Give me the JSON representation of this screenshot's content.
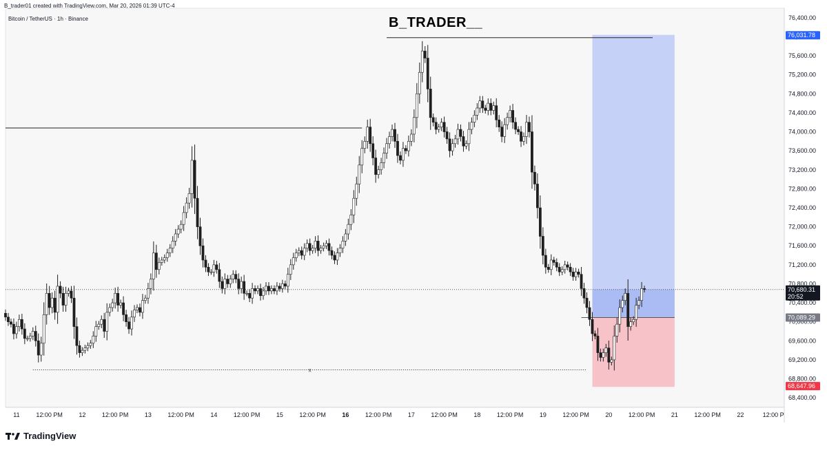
{
  "header": {
    "caption": "B_trader01 created with TradingView.com, Mar 20, 2026 01:39 UTC-4",
    "symbol": "Bitcoin / TetherUS · 1h · Binance",
    "watermark": "B_TRADER__"
  },
  "footer": {
    "brand": "TradingView"
  },
  "colors": {
    "up": "#ffffff",
    "down": "#1f1f1f",
    "wick": "#1f1f1f",
    "target_zone": "#c6d1f8",
    "stop_zone": "#f8c2c9",
    "target_label": "#2962ff",
    "stop_label": "#f23645",
    "entry_label": "#787b86",
    "price_label": "#131722"
  },
  "chart_data": {
    "type": "candlestick",
    "ylim": [
      68200,
      76600
    ],
    "y_ticks": [
      "76,400.00",
      "76,000.00",
      "75,600.00",
      "75,200.00",
      "74,800.00",
      "74,400.00",
      "74,000.00",
      "73,600.00",
      "73,200.00",
      "72,800.00",
      "72,400.00",
      "72,000.00",
      "71,600.00",
      "71,200.00",
      "70,800.00",
      "70,400.00",
      "70,000.00",
      "69,600.00",
      "69,200.00",
      "68,800.00",
      "68,400.00"
    ],
    "y_tick_values": [
      76400,
      76000,
      75600,
      75200,
      74800,
      74400,
      74000,
      73600,
      73200,
      72800,
      72400,
      72000,
      71600,
      71200,
      70800,
      70400,
      70000,
      69600,
      69200,
      68800,
      68400
    ],
    "x_range": [
      "Mar 10 20:00",
      "Mar 22 16:00"
    ],
    "x_ticks": [
      {
        "label": "11",
        "t": "11 00:00",
        "bold": false
      },
      {
        "label": "12:00 PM",
        "t": "11 12:00",
        "bold": false
      },
      {
        "label": "12",
        "t": "12 00:00",
        "bold": false
      },
      {
        "label": "12:00 PM",
        "t": "12 12:00",
        "bold": false
      },
      {
        "label": "13",
        "t": "13 00:00",
        "bold": false
      },
      {
        "label": "12:00 PM",
        "t": "13 12:00",
        "bold": false
      },
      {
        "label": "14",
        "t": "14 00:00",
        "bold": false
      },
      {
        "label": "12:00 PM",
        "t": "14 12:00",
        "bold": false
      },
      {
        "label": "15",
        "t": "15 00:00",
        "bold": false
      },
      {
        "label": "12:00 PM",
        "t": "15 12:00",
        "bold": false
      },
      {
        "label": "16",
        "t": "16 00:00",
        "bold": true
      },
      {
        "label": "12:00 PM",
        "t": "16 12:00",
        "bold": false
      },
      {
        "label": "17",
        "t": "17 00:00",
        "bold": false
      },
      {
        "label": "12:00 PM",
        "t": "17 12:00",
        "bold": false
      },
      {
        "label": "18",
        "t": "18 00:00",
        "bold": false
      },
      {
        "label": "12:00 PM",
        "t": "18 12:00",
        "bold": false
      },
      {
        "label": "19",
        "t": "19 00:00",
        "bold": false
      },
      {
        "label": "12:00 PM",
        "t": "19 12:00",
        "bold": false
      },
      {
        "label": "20",
        "t": "20 00:00",
        "bold": false
      },
      {
        "label": "12:00 PM",
        "t": "20 12:00",
        "bold": false
      },
      {
        "label": "21",
        "t": "21 00:00",
        "bold": false
      },
      {
        "label": "12:00 PM",
        "t": "21 12:00",
        "bold": false
      },
      {
        "label": "22",
        "t": "22 00:00",
        "bold": false
      },
      {
        "label": "12:00 P",
        "t": "22 12:00",
        "bold": false
      }
    ],
    "series": [
      {
        "name": "",
        "start": "Mar 10 20:00",
        "interval": "1h",
        "close": [
          70100,
          70000,
          69950,
          69750,
          69900,
          70050,
          69850,
          69650,
          69650,
          69700,
          69800,
          69600,
          69300,
          69550,
          70150,
          70600,
          70300,
          70500,
          70200,
          70750,
          70600,
          70350,
          70600,
          70650,
          70500,
          69900,
          69500,
          69350,
          69400,
          69450,
          69500,
          69550,
          69700,
          69900,
          69950,
          70050,
          69800,
          70200,
          70300,
          70400,
          70600,
          70350,
          70400,
          70150,
          70000,
          69850,
          70100,
          70250,
          70300,
          70200,
          70450,
          70500,
          70700,
          70900,
          71450,
          71100,
          71250,
          71300,
          71350,
          71450,
          71550,
          71700,
          71850,
          71950,
          72050,
          72300,
          72500,
          72700,
          73400,
          72600,
          72000,
          71600,
          71300,
          71150,
          71050,
          71050,
          71200,
          71100,
          70850,
          70700,
          70900,
          70800,
          70900,
          71000,
          70900,
          70700,
          70850,
          70600,
          70600,
          70500,
          70700,
          70650,
          70700,
          70550,
          70650,
          70750,
          70650,
          70700,
          70650,
          70750,
          70700,
          70800,
          70750,
          71000,
          71200,
          71350,
          71450,
          71500,
          71400,
          71550,
          71650,
          71500,
          71550,
          71700,
          71500,
          71550,
          71600,
          71650,
          71500,
          71400,
          71300,
          71450,
          71550,
          71700,
          71850,
          72050,
          72250,
          72600,
          72900,
          73300,
          73650,
          73800,
          74100,
          73750,
          73450,
          73100,
          73200,
          73350,
          73550,
          73750,
          73900,
          74050,
          73800,
          73500,
          73400,
          73650,
          73600,
          73800,
          73950,
          74300,
          74800,
          75250,
          75700,
          75550,
          74900,
          74300,
          74200,
          74050,
          74100,
          74200,
          74000,
          73850,
          73600,
          73750,
          73850,
          74050,
          73900,
          73700,
          73750,
          74050,
          74200,
          74350,
          74500,
          74650,
          74500,
          74450,
          74600,
          74450,
          74550,
          74250,
          74100,
          73900,
          74150,
          74300,
          74450,
          74200,
          74050,
          74000,
          73800,
          73900,
          74200,
          74000,
          73150,
          72900,
          72400,
          71800,
          71400,
          71150,
          71100,
          71300,
          71250,
          71150,
          71050,
          71100,
          71200,
          71150,
          71050,
          70950,
          71050,
          71000,
          70700,
          70500,
          70300,
          70050,
          69750,
          69700,
          69350,
          69250,
          69350,
          69450,
          69150,
          69200,
          69700,
          69950,
          70300,
          70450,
          70600,
          69900,
          70000,
          70050,
          70350,
          70450,
          70700,
          70680
        ]
      }
    ],
    "levels": [
      {
        "price": 74080,
        "from": "Mar 10 20:00",
        "to": "Mar 16 06:00",
        "style": "solid"
      },
      {
        "price": 75980,
        "from": "Mar 16 15:00",
        "to": "Mar 20 16:00",
        "style": "solid"
      },
      {
        "price": 68990,
        "from": "Mar 11 06:00",
        "to": "Mar 19 16:00",
        "style": "dotted",
        "marker": "x"
      },
      {
        "price": 70680,
        "from": "Mar 10 20:00",
        "to": "Mar 22 16:00",
        "style": "dotted-price"
      }
    ],
    "position": {
      "type": "long",
      "from": "Mar 19 18:00",
      "to": "Mar 21 00:00",
      "target": 76031.78,
      "entry": 70089.29,
      "stop": 68647.96,
      "zone_top": 76040,
      "zone_bottom": 68630
    },
    "price_labels": {
      "target": "76,031.78",
      "current": "70,680.31",
      "countdown": "20:52",
      "entry": "70,089.29",
      "stop": "68,647.96"
    }
  }
}
